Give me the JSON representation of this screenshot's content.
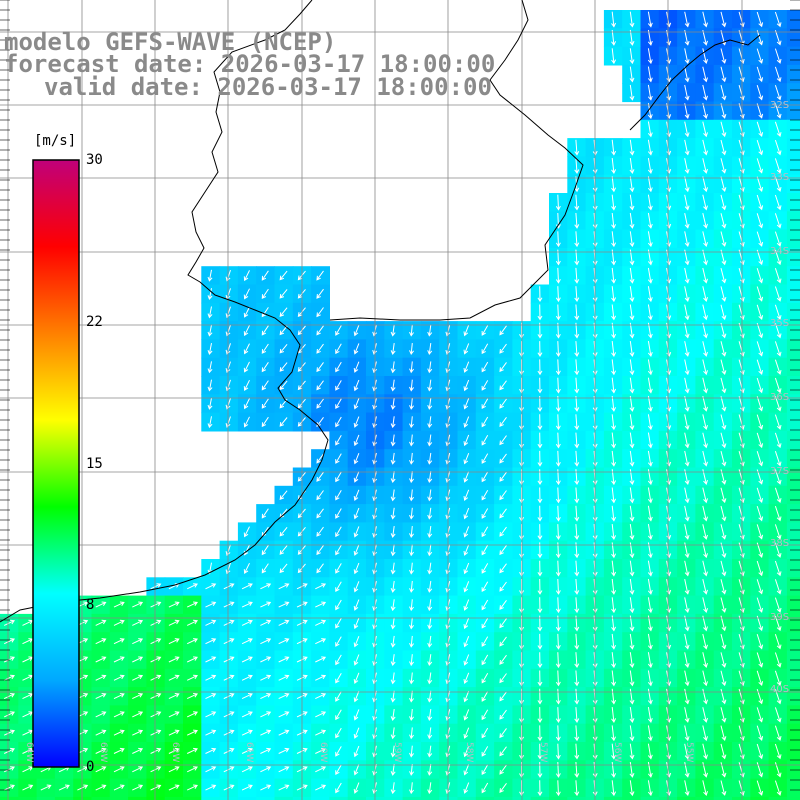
{
  "title": {
    "line1": "modelo GEFS-WAVE (NCEP)",
    "line2": "forecast date: 2026-03-17 18:00:00",
    "line3": "valid date: 2026-03-17 18:00:00"
  },
  "colorbar": {
    "unit": "[m/s]",
    "ticks": [
      "30",
      "22",
      "15",
      "8",
      "0"
    ],
    "tick_values": [
      30,
      22,
      15,
      8,
      0
    ],
    "range": [
      0,
      30
    ],
    "colors": [
      "#0000ff",
      "#00a8ff",
      "#00ffff",
      "#00ff00",
      "#ffff00",
      "#ff8000",
      "#ff0000",
      "#c0007a"
    ]
  },
  "map": {
    "lat_labels": [
      "32S",
      "33S",
      "34S",
      "35S",
      "36S",
      "37S",
      "38S",
      "39S",
      "40S"
    ],
    "lon_labels": [
      "64W",
      "63W",
      "62W",
      "61W",
      "60W",
      "59W",
      "58W",
      "57W",
      "56W",
      "55W"
    ],
    "colors": {
      "land": "#ffffff",
      "coast": "#000000",
      "grid": "#888888",
      "arrows": "#ffffff"
    }
  }
}
